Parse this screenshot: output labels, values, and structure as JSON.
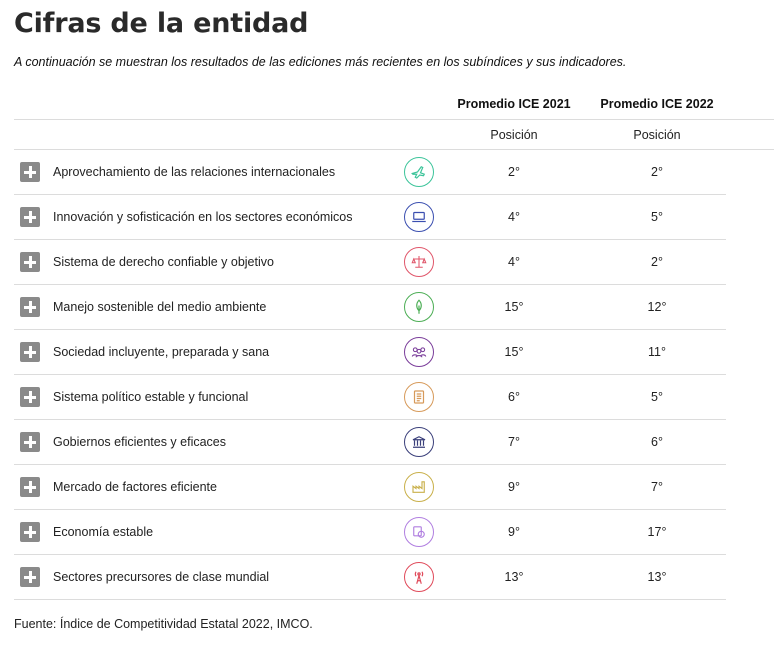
{
  "title": "Cifras de la entidad",
  "subtitle": "A continuación se muestran los resultados de las ediciones más recientes en los subíndices y sus indicadores.",
  "columns": [
    "Promedio ICE 2021",
    "Promedio ICE 2022"
  ],
  "subheaders": [
    "Posición",
    "Posición"
  ],
  "rows": [
    {
      "label": "Aprovechamiento de las relaciones internacionales",
      "icon": "airplane-icon",
      "color": "#3cc49a",
      "v2021": "2°",
      "v2022": "2°"
    },
    {
      "label": "Innovación y sofisticación en los sectores económicos",
      "icon": "laptop-icon",
      "color": "#3b4fb0",
      "v2021": "4°",
      "v2022": "5°"
    },
    {
      "label": "Sistema de derecho confiable y objetivo",
      "icon": "scales-icon",
      "color": "#e0566a",
      "v2021": "4°",
      "v2022": "2°"
    },
    {
      "label": "Manejo sostenible del medio ambiente",
      "icon": "leaf-icon",
      "color": "#4cae55",
      "v2021": "15°",
      "v2022": "12°"
    },
    {
      "label": "Sociedad incluyente, preparada y sana",
      "icon": "people-icon",
      "color": "#7a3d9a",
      "v2021": "15°",
      "v2022": "11°"
    },
    {
      "label": "Sistema político estable y funcional",
      "icon": "document-icon",
      "color": "#d79a5a",
      "v2021": "6°",
      "v2022": "5°"
    },
    {
      "label": "Gobiernos eficientes y eficaces",
      "icon": "government-building-icon",
      "color": "#3a3f7a",
      "v2021": "7°",
      "v2022": "6°"
    },
    {
      "label": "Mercado de factores eficiente",
      "icon": "factory-icon",
      "color": "#c9b04a",
      "v2021": "9°",
      "v2022": "7°"
    },
    {
      "label": "Economía estable",
      "icon": "money-icon",
      "color": "#b07ee0",
      "v2021": "9°",
      "v2022": "17°"
    },
    {
      "label": "Sectores precursores de clase mundial",
      "icon": "antenna-icon",
      "color": "#e04a5a",
      "v2021": "13°",
      "v2022": "13°"
    }
  ],
  "source": "Fuente: Índice de Competitividad Estatal 2022, IMCO."
}
